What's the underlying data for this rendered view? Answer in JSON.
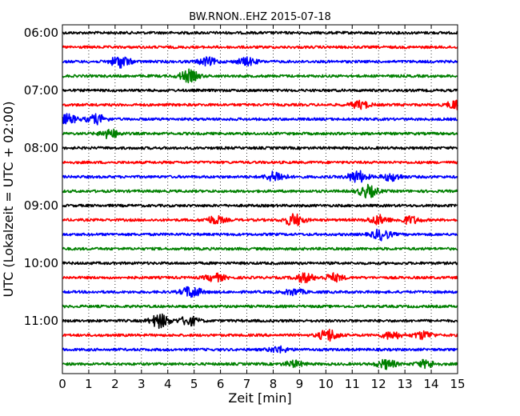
{
  "chart_data": {
    "type": "line",
    "title": "BW.RNON..EHZ 2015-07-18",
    "xlabel": "Zeit  [min]",
    "ylabel": "UTC (Lokalzeit = UTC + 02:00)",
    "xlim": [
      0,
      15
    ],
    "x_ticks": [
      "0",
      "1",
      "2",
      "3",
      "4",
      "5",
      "6",
      "7",
      "8",
      "9",
      "10",
      "11",
      "12",
      "13",
      "14",
      "15"
    ],
    "y_ticks": [
      "06:00",
      "07:00",
      "08:00",
      "09:00",
      "10:00",
      "11:00"
    ],
    "grid": "vertical dotted",
    "trace_interval_min": 15,
    "trace_colors": [
      "#000000",
      "#ff0000",
      "#0000ff",
      "#008000"
    ],
    "traces": [
      {
        "start": "06:00",
        "color": "#000000",
        "events": []
      },
      {
        "start": "06:15",
        "color": "#ff0000",
        "events": []
      },
      {
        "start": "06:30",
        "color": "#0000ff",
        "events": [
          {
            "t": 2.2,
            "amp": 0.8
          },
          {
            "t": 5.5,
            "amp": 0.5
          },
          {
            "t": 7.0,
            "amp": 0.5
          }
        ]
      },
      {
        "start": "06:45",
        "color": "#008000",
        "events": [
          {
            "t": 4.8,
            "amp": 0.8
          }
        ]
      },
      {
        "start": "07:00",
        "color": "#000000",
        "events": []
      },
      {
        "start": "07:15",
        "color": "#ff0000",
        "events": [
          {
            "t": 11.3,
            "amp": 0.5
          },
          {
            "t": 15.0,
            "amp": 0.7
          }
        ]
      },
      {
        "start": "07:30",
        "color": "#0000ff",
        "events": [
          {
            "t": 0.2,
            "amp": 0.6
          },
          {
            "t": 1.3,
            "amp": 0.6
          }
        ]
      },
      {
        "start": "07:45",
        "color": "#008000",
        "events": [
          {
            "t": 1.8,
            "amp": 0.6
          }
        ]
      },
      {
        "start": "08:00",
        "color": "#000000",
        "events": []
      },
      {
        "start": "08:15",
        "color": "#ff0000",
        "events": []
      },
      {
        "start": "08:30",
        "color": "#0000ff",
        "events": [
          {
            "t": 8.1,
            "amp": 0.7
          },
          {
            "t": 11.2,
            "amp": 0.8
          },
          {
            "t": 12.5,
            "amp": 0.5
          }
        ]
      },
      {
        "start": "08:45",
        "color": "#008000",
        "events": [
          {
            "t": 11.6,
            "amp": 0.8
          }
        ]
      },
      {
        "start": "09:00",
        "color": "#000000",
        "events": []
      },
      {
        "start": "09:15",
        "color": "#ff0000",
        "events": [
          {
            "t": 5.8,
            "amp": 0.5
          },
          {
            "t": 8.8,
            "amp": 0.8
          },
          {
            "t": 12.0,
            "amp": 0.6
          },
          {
            "t": 13.2,
            "amp": 0.5
          }
        ]
      },
      {
        "start": "09:30",
        "color": "#0000ff",
        "events": [
          {
            "t": 12.1,
            "amp": 0.7
          }
        ]
      },
      {
        "start": "09:45",
        "color": "#008000",
        "events": []
      },
      {
        "start": "10:00",
        "color": "#000000",
        "events": []
      },
      {
        "start": "10:15",
        "color": "#ff0000",
        "events": [
          {
            "t": 5.8,
            "amp": 0.5
          },
          {
            "t": 9.2,
            "amp": 0.6
          },
          {
            "t": 10.3,
            "amp": 0.5
          }
        ]
      },
      {
        "start": "10:30",
        "color": "#0000ff",
        "events": [
          {
            "t": 4.9,
            "amp": 0.8
          },
          {
            "t": 8.8,
            "amp": 0.4
          }
        ]
      },
      {
        "start": "10:45",
        "color": "#008000",
        "events": []
      },
      {
        "start": "11:00",
        "color": "#000000",
        "events": [
          {
            "t": 3.7,
            "amp": 0.9
          },
          {
            "t": 4.8,
            "amp": 0.6
          }
        ]
      },
      {
        "start": "11:15",
        "color": "#ff0000",
        "events": [
          {
            "t": 10.1,
            "amp": 0.8
          },
          {
            "t": 12.5,
            "amp": 0.5
          },
          {
            "t": 13.7,
            "amp": 0.5
          }
        ]
      },
      {
        "start": "11:30",
        "color": "#0000ff",
        "events": [
          {
            "t": 8.2,
            "amp": 0.4
          }
        ]
      },
      {
        "start": "11:45",
        "color": "#008000",
        "events": [
          {
            "t": 8.8,
            "amp": 0.4
          },
          {
            "t": 12.3,
            "amp": 0.6
          },
          {
            "t": 13.8,
            "amp": 0.5
          }
        ]
      }
    ]
  }
}
